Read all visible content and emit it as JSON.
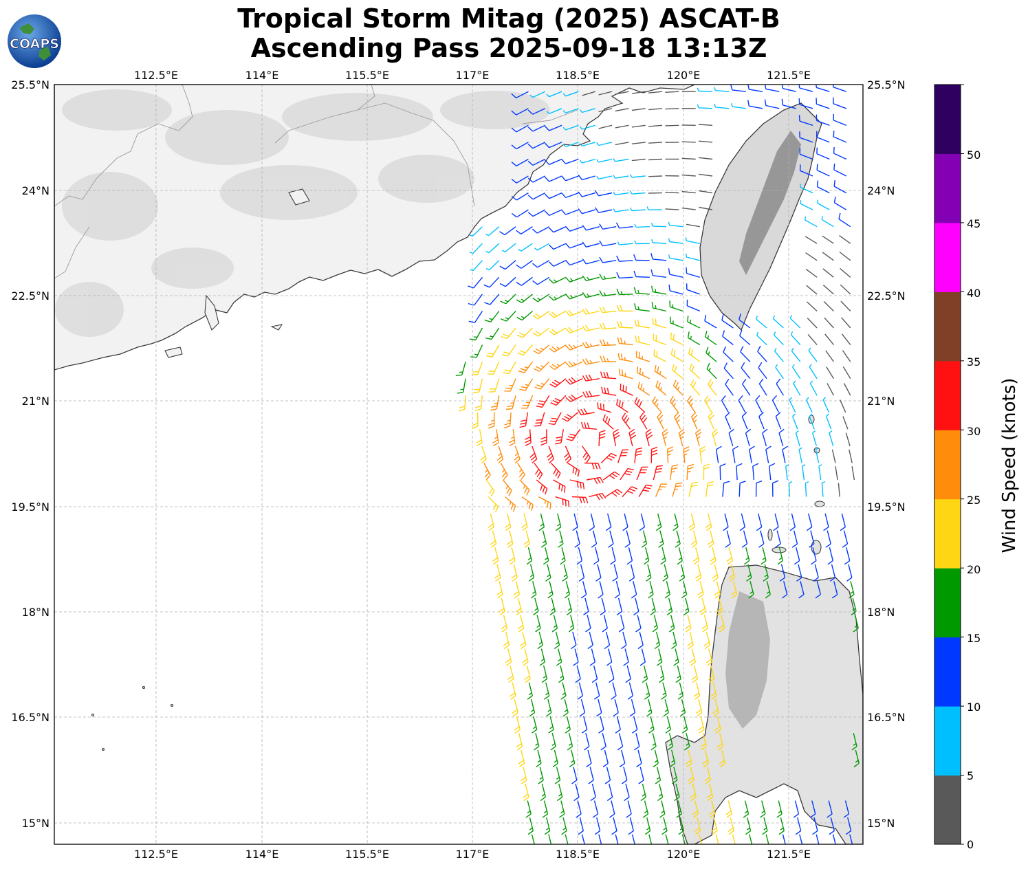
{
  "title": {
    "line1": "Tropical Storm Mitag (2025) ASCAT-B",
    "line2": "Ascending Pass 2025-09-18 13:13Z"
  },
  "logo": {
    "text": "COAPS",
    "icon": "globe-icon"
  },
  "map": {
    "lon_range": [
      111.0,
      122.6
    ],
    "lat_range": [
      14.7,
      25.5
    ],
    "lon_ticks": [
      "112.5°E",
      "114°E",
      "115.5°E",
      "117°E",
      "118.5°E",
      "120°E",
      "121.5°E"
    ],
    "lat_ticks": [
      "25.5°N",
      "24°N",
      "22.5°N",
      "21°N",
      "19.5°N",
      "18°N",
      "16.5°N",
      "15°N"
    ],
    "gridlines": true,
    "land_color": "#f4f4f4",
    "coast_color": "#333333"
  },
  "colorbar": {
    "label": "Wind Speed (knots)",
    "ticks": [
      "0",
      "5",
      "10",
      "15",
      "20",
      "25",
      "30",
      "35",
      "40",
      "45",
      "50"
    ],
    "colors": [
      "#595959",
      "#00bfff",
      "#0038ff",
      "#009900",
      "#ffd614",
      "#ff8c0a",
      "#ff1111",
      "#804028",
      "#ff00ff",
      "#8400b4",
      "#300060"
    ]
  },
  "wind_barbs": {
    "units": "knots",
    "center": {
      "lon": 118.7,
      "lat": 20.4
    },
    "max_speed_kt": 33,
    "swath_lon_range": [
      117.0,
      122.6
    ]
  }
}
